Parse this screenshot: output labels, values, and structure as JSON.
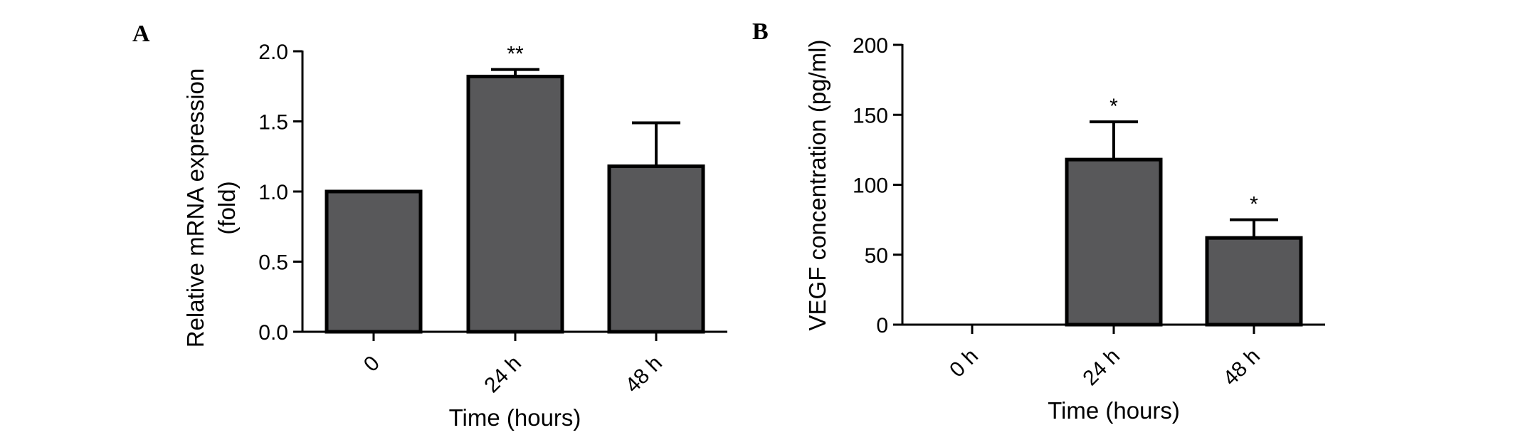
{
  "chart_data": [
    {
      "type": "bar",
      "panel_label": "A",
      "categories": [
        "0",
        "24 h",
        "48 h"
      ],
      "values": [
        1.0,
        1.82,
        1.18
      ],
      "error_upper": [
        1.0,
        1.87,
        1.49
      ],
      "significance": [
        "",
        "**",
        ""
      ],
      "xlabel": "Time (hours)",
      "ylabel_lines": [
        "Relative mRNA expression",
        "(fold)"
      ],
      "ylim": [
        0,
        2.0
      ],
      "yticks": [
        0.0,
        0.5,
        1.0,
        1.5,
        2.0
      ],
      "ytick_labels": [
        "0.0",
        "0.5",
        "1.0",
        "1.5",
        "2.0"
      ],
      "grid": false,
      "bar_color": "#58585a",
      "edge_color": "#000000"
    },
    {
      "type": "bar",
      "panel_label": "B",
      "categories": [
        "0 h",
        "24 h",
        "48 h"
      ],
      "values": [
        0,
        118,
        62
      ],
      "error_upper": [
        0,
        145,
        75
      ],
      "significance": [
        "",
        "*",
        "*"
      ],
      "xlabel": "Time (hours)",
      "ylabel_lines": [
        "VEGF concentration (pg/ml)"
      ],
      "ylim": [
        0,
        200
      ],
      "yticks": [
        0,
        50,
        100,
        150,
        200
      ],
      "ytick_labels": [
        "0",
        "50",
        "100",
        "150",
        "200"
      ],
      "grid": false,
      "bar_color": "#58585a",
      "edge_color": "#000000"
    }
  ]
}
